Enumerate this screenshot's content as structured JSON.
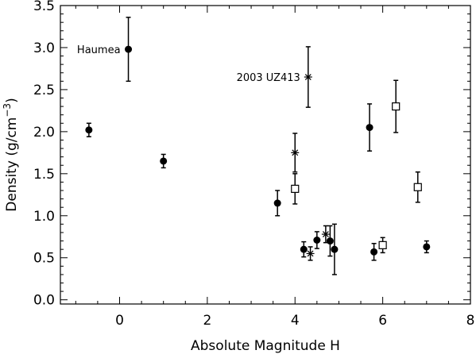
{
  "chart_data": {
    "type": "scatter",
    "xlabel": "Absolute Magnitude H",
    "ylabel_main": "Density  (g/cm",
    "ylabel_sup": "−3",
    "ylabel_close": ")",
    "xlim": [
      -1.35,
      8.0
    ],
    "ylim": [
      -0.05,
      3.5
    ],
    "xticks": [
      0,
      2,
      4,
      6,
      8
    ],
    "xtick_labels": [
      "0",
      "2",
      "4",
      "6",
      "8"
    ],
    "yticks": [
      0.0,
      0.5,
      1.0,
      1.5,
      2.0,
      2.5,
      3.0,
      3.5
    ],
    "ytick_labels": [
      "0.0",
      "0.5",
      "1.0",
      "1.5",
      "2.0",
      "2.5",
      "3.0",
      "3.5"
    ],
    "grid": false,
    "colors": {
      "axis": "#000000",
      "marker": "#000000",
      "background": "#ffffff"
    },
    "series": [
      {
        "marker": "filled-circle",
        "points": [
          {
            "x": -0.7,
            "y": 2.02,
            "err": 0.08
          },
          {
            "x": 0.2,
            "y": 2.98,
            "err": 0.38
          },
          {
            "x": 1.0,
            "y": 1.65,
            "err": 0.08
          },
          {
            "x": 3.6,
            "y": 1.15,
            "err": 0.15
          },
          {
            "x": 4.2,
            "y": 0.6,
            "err": 0.09
          },
          {
            "x": 4.5,
            "y": 0.71,
            "err": 0.1
          },
          {
            "x": 4.8,
            "y": 0.7,
            "err": 0.18
          },
          {
            "x": 4.9,
            "y": 0.6,
            "err": 0.3
          },
          {
            "x": 5.7,
            "y": 2.05,
            "err": 0.28
          },
          {
            "x": 5.8,
            "y": 0.57,
            "err": 0.1
          },
          {
            "x": 7.0,
            "y": 0.63,
            "err": 0.07
          }
        ]
      },
      {
        "marker": "asterisk",
        "points": [
          {
            "x": 4.0,
            "y": 1.75,
            "err": 0.23
          },
          {
            "x": 4.3,
            "y": 2.65,
            "err": 0.36
          },
          {
            "x": 4.35,
            "y": 0.55,
            "err": 0.08
          },
          {
            "x": 4.7,
            "y": 0.78,
            "err": 0.1
          }
        ]
      },
      {
        "marker": "open-square",
        "points": [
          {
            "x": 4.0,
            "y": 1.32,
            "err": 0.18
          },
          {
            "x": 6.0,
            "y": 0.65,
            "err": 0.09
          },
          {
            "x": 6.3,
            "y": 2.3,
            "err": 0.31
          },
          {
            "x": 6.8,
            "y": 1.34,
            "err": 0.18
          }
        ]
      }
    ],
    "annotations": [
      {
        "text": "Haumea",
        "x": 0.2,
        "y": 2.98,
        "anchor": "end"
      },
      {
        "text": "2003 UZ413",
        "x": 4.3,
        "y": 2.65,
        "anchor": "end"
      }
    ]
  }
}
